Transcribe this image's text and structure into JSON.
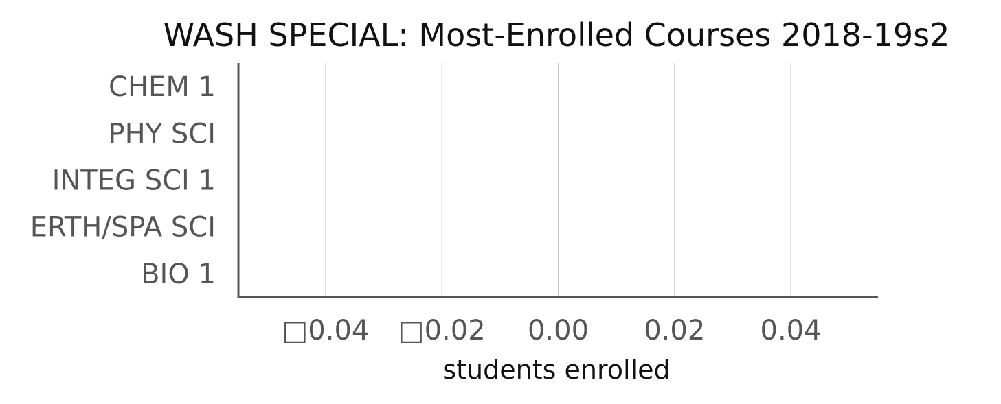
{
  "chart_data": {
    "type": "bar",
    "orientation": "horizontal",
    "title": "WASH SPECIAL: Most-Enrolled Courses 2018-19s2",
    "xlabel": "students enrolled",
    "ylabel": "",
    "categories": [
      "CHEM 1",
      "PHY SCI",
      "INTEG SCI 1",
      "ERTH/SPA SCI",
      "BIO 1"
    ],
    "series": [
      {
        "values": [
          0,
          0,
          0,
          0,
          0
        ]
      }
    ],
    "xlim": [
      -0.055,
      0.055
    ],
    "xticks": [
      -0.04,
      -0.02,
      0.0,
      0.02,
      0.04
    ],
    "xtick_labels": [
      "□0.04",
      "□0.02",
      "0.00",
      "0.02",
      "0.04"
    ],
    "grid": "vertical",
    "legend": "none",
    "colors": {
      "grid": "#c8c8c8",
      "axis": "#555555",
      "tick_text": "#555555",
      "title_text": "#111111",
      "bar": "#4c72b0"
    }
  }
}
